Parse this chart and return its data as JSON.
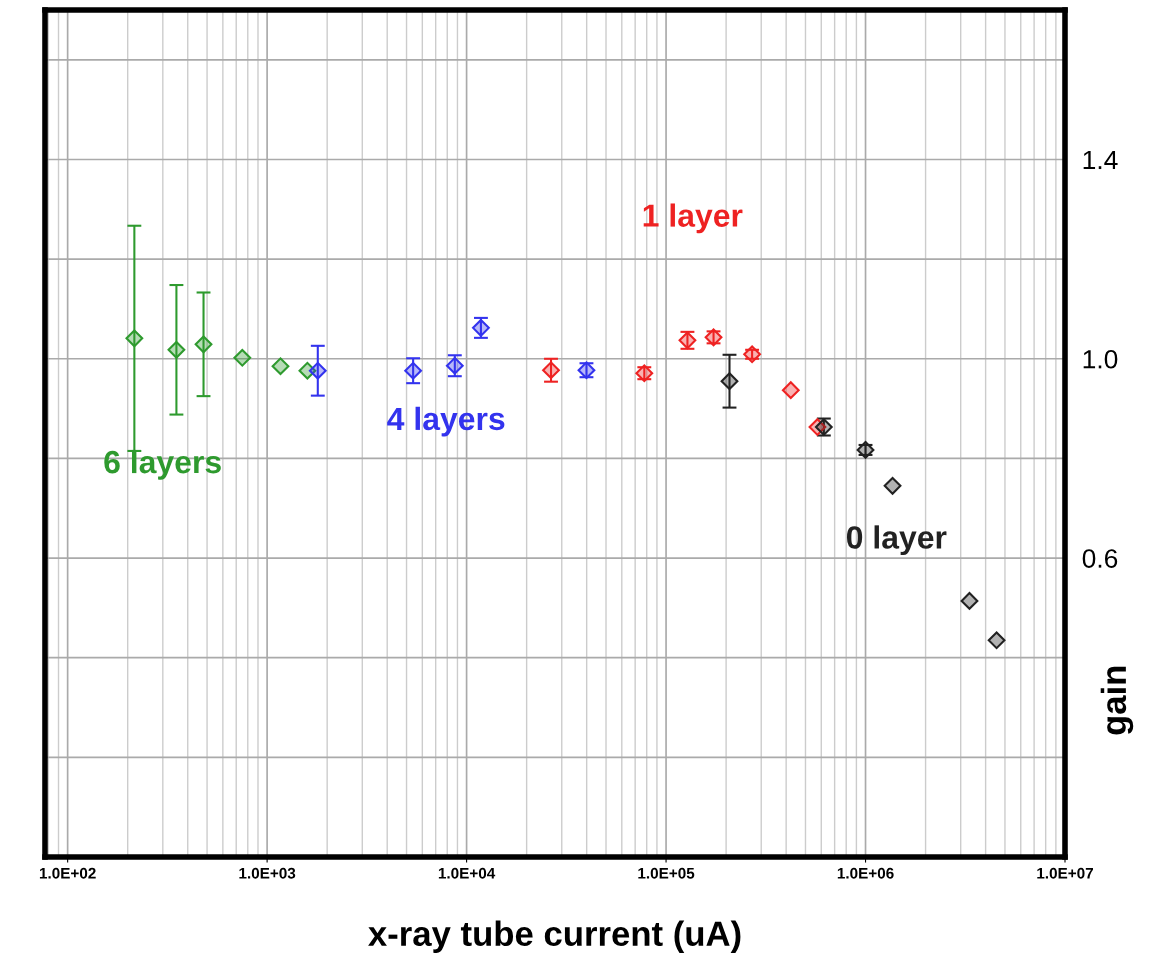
{
  "chart_data": {
    "type": "scatter",
    "xlabel": "x-ray tube current (uA)",
    "ylabel": "gain",
    "log": "x",
    "grid": true,
    "marker": "diamond",
    "legend": false,
    "xlim": [
      77,
      10000000
    ],
    "xticks": [
      {
        "value": 100,
        "label": "1.0E+02"
      },
      {
        "value": 1000,
        "label": "1.0E+03"
      },
      {
        "value": 10000,
        "label": "1.0E+04"
      },
      {
        "value": 100000,
        "label": "1.0E+05"
      },
      {
        "value": 1000000,
        "label": "1.0E+06"
      },
      {
        "value": 10000000,
        "label": "1.0E+07"
      }
    ],
    "ylim": [
      0,
      1.7
    ],
    "yticks": [
      {
        "value": 0.2,
        "label": null
      },
      {
        "value": 0.4,
        "label": null
      },
      0.6,
      {
        "value": 0.8,
        "label": null
      },
      {
        "value": 1.0,
        "label": "1.0"
      },
      {
        "value": 1.2,
        "label": null
      },
      1.4,
      {
        "value": 1.6,
        "label": null
      }
    ],
    "series": [
      {
        "name": "6 layers",
        "color": "#2e9a2e",
        "x": [
          216,
          351,
          480,
          751,
          1167,
          1592
        ],
        "values": [
          1.041,
          1.018,
          1.029,
          1.002,
          0.985,
          0.976
        ],
        "errors": [
          0.226,
          0.13,
          0.104,
          null,
          null,
          null
        ]
      },
      {
        "name": "4 layers",
        "color": "#3333ee",
        "x": [
          1795,
          5395,
          8730,
          11800,
          39900
        ],
        "values": [
          0.976,
          0.976,
          0.986,
          1.062,
          0.977
        ],
        "errors": [
          0.05,
          0.025,
          0.021,
          0.02,
          0.014
        ]
      },
      {
        "name": "1 layer",
        "color": "#ee2222",
        "x": [
          26500,
          77800,
          128000,
          173000,
          270000,
          422000,
          574000
        ],
        "values": [
          0.977,
          0.971,
          1.037,
          1.043,
          1.009,
          0.937,
          0.863
        ],
        "errors": [
          0.023,
          0.012,
          0.017,
          0.012,
          0.009,
          null,
          null
        ]
      },
      {
        "name": "0 layer",
        "color": "#222222",
        "x": [
          208000,
          618000,
          1000000,
          1366000,
          3320000,
          4540000
        ],
        "values": [
          0.955,
          0.863,
          0.817,
          0.745,
          0.514,
          0.435
        ],
        "errors": [
          0.053,
          0.017,
          0.01,
          null,
          null,
          null
        ]
      }
    ]
  }
}
